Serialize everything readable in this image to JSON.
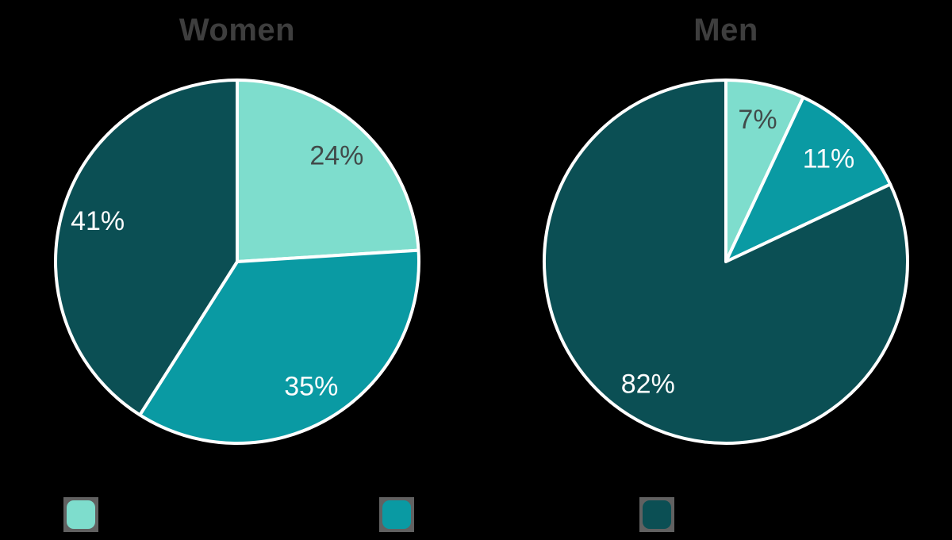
{
  "page": {
    "background_color": "#000000"
  },
  "chart_data": [
    {
      "type": "pie",
      "title": "Women",
      "title_color": "#3e3e3e",
      "direction": "clockwise",
      "start_angle_deg": 0,
      "slices": [
        {
          "value": 24,
          "label": "24%",
          "color": "#7eddcd",
          "label_color": "#414b4a"
        },
        {
          "value": 35,
          "label": "35%",
          "color": "#0a9aa3",
          "label_color": "#fcfcfc"
        },
        {
          "value": 41,
          "label": "41%",
          "color": "#0b4f54",
          "label_color": "#fcfcfc"
        }
      ]
    },
    {
      "type": "pie",
      "title": "Men",
      "title_color": "#3e3e3e",
      "direction": "clockwise",
      "start_angle_deg": 0,
      "slices": [
        {
          "value": 7,
          "label": "7%",
          "color": "#7eddcd",
          "label_color": "#414b4a"
        },
        {
          "value": 11,
          "label": "11%",
          "color": "#0a9aa3",
          "label_color": "#fcfcfc"
        },
        {
          "value": 82,
          "label": "82%",
          "color": "#0b4f54",
          "label_color": "#fcfcfc"
        }
      ]
    }
  ],
  "legend": {
    "labels_visible": false,
    "swatches": [
      {
        "color": "#7eddcd"
      },
      {
        "color": "#0a9aa3"
      },
      {
        "color": "#0b4f54"
      }
    ]
  }
}
